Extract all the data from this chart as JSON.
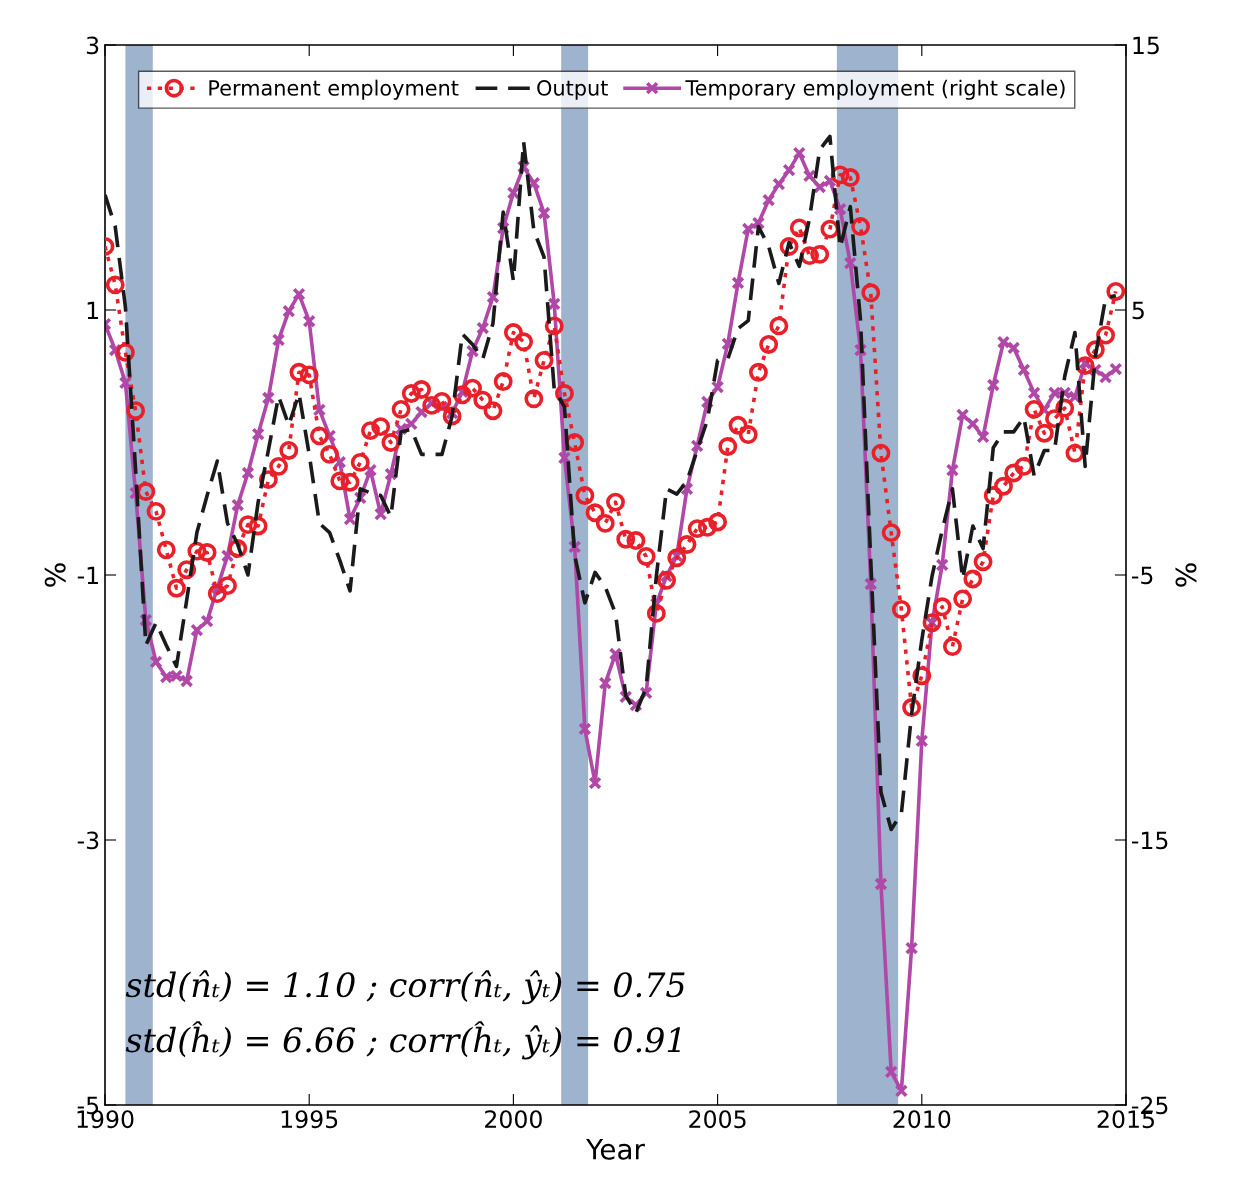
{
  "chart_data": {
    "type": "line",
    "xlabel": "Year",
    "ylabel": "%",
    "y2label": "%",
    "x": [
      1990,
      1990.25,
      1990.5,
      1990.75,
      1991,
      1991.25,
      1991.5,
      1991.75,
      1992,
      1992.25,
      1992.5,
      1992.75,
      1993,
      1993.25,
      1993.5,
      1993.75,
      1994,
      1994.25,
      1994.5,
      1994.75,
      1995,
      1995.25,
      1995.5,
      1995.75,
      1996,
      1996.25,
      1996.5,
      1996.75,
      1997,
      1997.25,
      1997.5,
      1997.75,
      1998,
      1998.25,
      1998.5,
      1998.75,
      1999,
      1999.25,
      1999.5,
      1999.75,
      2000,
      2000.25,
      2000.5,
      2000.75,
      2001,
      2001.25,
      2001.5,
      2001.75,
      2002,
      2002.25,
      2002.5,
      2002.75,
      2003,
      2003.25,
      2003.5,
      2003.75,
      2004,
      2004.25,
      2004.5,
      2004.75,
      2005,
      2005.25,
      2005.5,
      2005.75,
      2006,
      2006.25,
      2006.5,
      2006.75,
      2007,
      2007.25,
      2007.5,
      2007.75,
      2008,
      2008.25,
      2008.5,
      2008.75,
      2009,
      2009.25,
      2009.5,
      2009.75,
      2010,
      2010.25,
      2010.5,
      2010.75,
      2011,
      2011.25,
      2011.5,
      2011.75,
      2012,
      2012.25,
      2012.5,
      2012.75,
      2013,
      2013.25,
      2013.5,
      2013.75,
      2014,
      2014.25,
      2014.5,
      2014.75
    ],
    "series": [
      {
        "name": "Permanent employment",
        "color": "#e8202a",
        "marker": "circle",
        "line_style": "dotted",
        "values": [
          1.48,
          1.19,
          0.68,
          0.24,
          -0.37,
          -0.52,
          -0.81,
          -1.1,
          -0.96,
          -0.82,
          -0.83,
          -1.14,
          -1.08,
          -0.8,
          -0.62,
          -0.63,
          -0.28,
          -0.18,
          -0.06,
          0.53,
          0.51,
          0.05,
          -0.09,
          -0.29,
          -0.3,
          -0.15,
          0.09,
          0.12,
          0.0,
          0.25,
          0.37,
          0.4,
          0.28,
          0.31,
          0.2,
          0.36,
          0.41,
          0.32,
          0.24,
          0.46,
          0.83,
          0.76,
          0.33,
          0.62,
          0.88,
          0.37,
          0.0,
          -0.4,
          -0.53,
          -0.61,
          -0.45,
          -0.73,
          -0.74,
          -0.86,
          -1.29,
          -1.04,
          -0.87,
          -0.77,
          -0.65,
          -0.64,
          -0.6,
          -0.03,
          0.13,
          0.06,
          0.53,
          0.74,
          0.88,
          1.48,
          1.62,
          1.41,
          1.42,
          1.61,
          2.02,
          2.0,
          1.63,
          1.13,
          -0.08,
          -0.68,
          -1.26,
          -2.0,
          -1.76,
          -1.36,
          -1.24,
          -1.54,
          -1.18,
          -1.03,
          -0.9,
          -0.4,
          -0.33,
          -0.23,
          -0.18,
          0.25,
          0.07,
          0.18,
          0.26,
          -0.08,
          0.58,
          0.7,
          0.81,
          1.14
        ]
      },
      {
        "name": "Output",
        "color": "#1a1a1a",
        "marker": "none",
        "line_style": "dashed",
        "values": [
          1.87,
          1.63,
          1.02,
          -0.21,
          -1.53,
          -1.36,
          -1.53,
          -1.69,
          -1.19,
          -0.68,
          -0.4,
          -0.14,
          -0.61,
          -0.77,
          -1.0,
          -0.45,
          -0.06,
          0.35,
          0.13,
          0.37,
          -0.09,
          -0.61,
          -0.68,
          -0.89,
          -1.12,
          -0.35,
          -0.38,
          -0.4,
          -0.56,
          0.08,
          0.1,
          -0.09,
          -0.09,
          -0.09,
          0.2,
          0.82,
          0.74,
          0.63,
          0.9,
          1.74,
          1.22,
          2.27,
          1.6,
          1.4,
          0.4,
          0.27,
          -0.85,
          -1.21,
          -0.98,
          -1.09,
          -1.29,
          -1.91,
          -2.04,
          -1.85,
          -1.01,
          -0.35,
          -0.39,
          -0.29,
          -0.06,
          0.17,
          0.62,
          0.63,
          0.86,
          0.92,
          1.63,
          1.48,
          1.2,
          1.51,
          1.33,
          1.69,
          2.21,
          2.31,
          1.47,
          1.78,
          0.92,
          -0.89,
          -2.64,
          -2.92,
          -2.8,
          -2.05,
          -1.49,
          -1.01,
          -0.66,
          -0.35,
          -1.03,
          -0.63,
          -0.8,
          -0.04,
          0.08,
          0.08,
          0.19,
          -0.25,
          -0.06,
          -0.06,
          0.5,
          0.83,
          -0.18,
          0.65,
          1.09,
          1.11
        ]
      },
      {
        "name": "Temporary employment (right scale)",
        "color": "#b048a8",
        "marker": "cross",
        "line_style": "solid",
        "axis": "y2",
        "values": [
          4.47,
          3.49,
          2.25,
          -1.91,
          -6.7,
          -8.28,
          -8.85,
          -8.81,
          -9.0,
          -7.08,
          -6.74,
          -5.49,
          -4.28,
          -2.36,
          -1.15,
          0.32,
          1.68,
          3.87,
          4.96,
          5.6,
          4.58,
          1.23,
          0.25,
          -0.74,
          -2.89,
          -2.09,
          -1.04,
          -2.7,
          -1.19,
          0.51,
          0.7,
          1.15,
          1.49,
          1.34,
          1.11,
          1.91,
          3.45,
          4.32,
          5.49,
          8.09,
          9.42,
          10.4,
          9.79,
          8.66,
          5.23,
          -0.58,
          -3.94,
          -10.81,
          -12.85,
          -9.08,
          -7.98,
          -9.6,
          -9.91,
          -9.45,
          -6.09,
          -5.04,
          -4.28,
          -1.75,
          -0.13,
          1.53,
          2.09,
          3.72,
          6.02,
          8.06,
          8.28,
          9.15,
          9.75,
          10.28,
          10.92,
          10.06,
          9.64,
          9.87,
          8.81,
          6.77,
          3.49,
          -5.34,
          -16.66,
          -23.75,
          -24.47,
          -19.08,
          -11.26,
          -6.81,
          -4.62,
          -1.04,
          1.04,
          0.7,
          0.21,
          2.17,
          3.79,
          3.57,
          2.74,
          1.87,
          1.23,
          1.87,
          1.87,
          1.72,
          3.0,
          2.74,
          2.47,
          2.77
        ]
      }
    ],
    "xlim": [
      1990,
      2015
    ],
    "xticks": [
      1990,
      1995,
      2000,
      2005,
      2010,
      2015
    ],
    "ylim": [
      -5,
      3
    ],
    "yticks": [
      -5,
      -3,
      -1,
      1,
      3
    ],
    "y2lim": [
      -25,
      15
    ],
    "y2ticks": [
      -25,
      -15,
      -5,
      5,
      15
    ],
    "bands": [
      {
        "axis": "x",
        "from": 1990.5,
        "to": 1991.17,
        "label": null,
        "color": "#9db3ce"
      },
      {
        "axis": "x",
        "from": 2001.17,
        "to": 2001.83,
        "label": null,
        "color": "#9db3ce"
      },
      {
        "axis": "x",
        "from": 2007.92,
        "to": 2009.42,
        "label": null,
        "color": "#9db3ce"
      }
    ],
    "annotations": [
      "std(n̂ₜ) = 1.10 ; corr(n̂ₜ, ŷₜ) = 0.75",
      "std(ĥₜ) = 6.66 ; corr(ĥₜ, ŷₜ) = 0.91"
    ],
    "legend": "top right",
    "grid": false
  }
}
